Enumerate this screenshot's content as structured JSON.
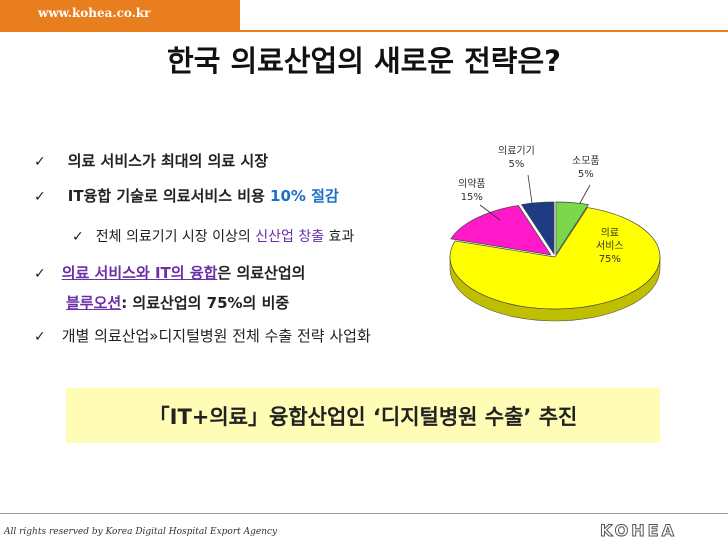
{
  "header": {
    "url": "www.kohea.co.kr"
  },
  "title": "한국 의료산업의 새로운 전략은?",
  "bullets": {
    "b1": "의료 서비스가 최대의 의료 시장",
    "b2_pre": "IT융합 기술로 의료서비스 비용 ",
    "b2_hl": "10% 절감",
    "b3_pre": "전체 의료기기 시장 이상의 ",
    "b3_hl": "신산업 창출",
    "b3_post": " 효과",
    "b4_hl": "의료 서비스와 IT의 융합",
    "b4_post": "은 의료산업의",
    "b4b_hl": "블루오션 ",
    "b4b_post": ": 의료산업의 75%의 비중",
    "b5": "개별 의료산업»디지털병원 전체 수출 전략 사업화"
  },
  "banner": "「IT+의료」융합산업인 ‘디지털병원 수출’ 추진",
  "footer": "All rights reserved by Korea Digital Hospital Export Agency",
  "logo_text": "KOHEA",
  "chart_data": {
    "type": "pie",
    "categories": [
      "의료 서비스",
      "의약품",
      "의료기기",
      "소모품"
    ],
    "values": [
      75,
      15,
      5,
      5
    ],
    "colors": [
      "#ffff00",
      "#ff19c8",
      "#1d3c84",
      "#7ad84a"
    ],
    "labels": [
      {
        "name": "의료",
        "name2": "서비스",
        "pct": "75%"
      },
      {
        "name": "의약품",
        "pct": "15%"
      },
      {
        "name": "의료기기",
        "pct": "5%"
      },
      {
        "name": "소모품",
        "pct": "5%"
      }
    ]
  }
}
